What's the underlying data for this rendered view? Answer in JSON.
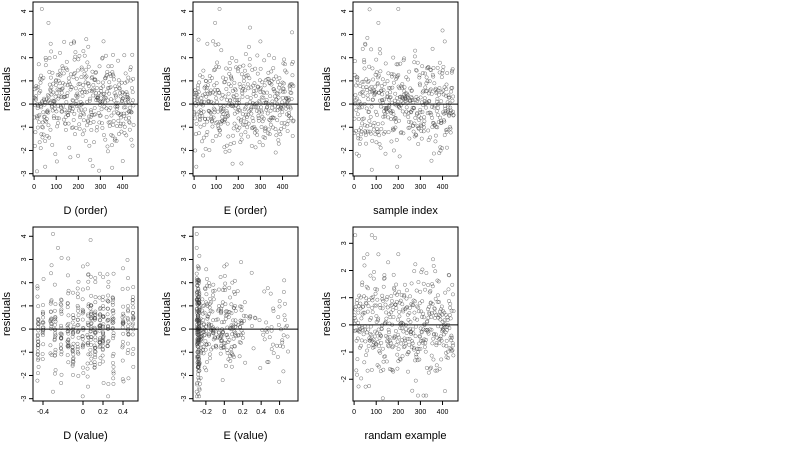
{
  "chart_data": [
    {
      "type": "scatter",
      "xlabel": "D (order)",
      "ylabel": "residuals",
      "xlim": [
        -5,
        470
      ],
      "ylim": [
        -3.1,
        4.4
      ],
      "xticks": [
        0,
        100,
        200,
        300,
        400
      ],
      "yticks": [
        -3,
        -2,
        -1,
        0,
        1,
        2,
        3,
        4
      ],
      "hline": 0,
      "n_points": 450,
      "notable_points": [
        {
          "x": 35,
          "y": 4.1
        },
        {
          "x": 65,
          "y": 3.5
        },
        {
          "x": 50,
          "y": -2.7
        },
        {
          "x": 30,
          "y": -1.9
        },
        {
          "x": 75,
          "y": 2.6
        },
        {
          "x": 180,
          "y": 2.7
        },
        {
          "x": 310,
          "y": 2.0
        }
      ]
    },
    {
      "type": "scatter",
      "xlabel": "E (order)",
      "ylabel": "residuals",
      "xlim": [
        -5,
        470
      ],
      "ylim": [
        -3.1,
        4.4
      ],
      "xticks": [
        0,
        100,
        200,
        300,
        400
      ],
      "yticks": [
        -3,
        -2,
        -1,
        0,
        1,
        2,
        3,
        4
      ],
      "hline": 0,
      "n_points": 450,
      "notable_points": [
        {
          "x": 115,
          "y": 4.1
        },
        {
          "x": 95,
          "y": 3.5
        },
        {
          "x": 10,
          "y": -2.7
        },
        {
          "x": 5,
          "y": -2.0
        },
        {
          "x": 300,
          "y": 2.7
        },
        {
          "x": 60,
          "y": 2.6
        }
      ]
    },
    {
      "type": "scatter",
      "xlabel": "sample index",
      "ylabel": "residuals",
      "xlim": [
        -5,
        470
      ],
      "ylim": [
        -3.1,
        4.4
      ],
      "xticks": [
        0,
        100,
        200,
        300,
        400
      ],
      "yticks": [
        -3,
        -2,
        -1,
        0,
        1,
        2,
        3,
        4
      ],
      "hline": 0,
      "n_points": 450,
      "notable_points": [
        {
          "x": 200,
          "y": 4.1
        },
        {
          "x": 110,
          "y": 3.5
        },
        {
          "x": 195,
          "y": -2.7
        },
        {
          "x": 180,
          "y": -2.0
        },
        {
          "x": 410,
          "y": 2.7
        },
        {
          "x": 50,
          "y": 2.6
        }
      ]
    },
    {
      "type": "scatter",
      "xlabel": "D (value)",
      "ylabel": "residuals",
      "xlim": [
        -0.5,
        0.55
      ],
      "ylim": [
        -3.1,
        4.4
      ],
      "xticks": [
        -0.4,
        0.0,
        0.2,
        0.4
      ],
      "yticks": [
        -3,
        -2,
        -1,
        0,
        1,
        2,
        3,
        4
      ],
      "hline": 0,
      "n_points": 450,
      "notable_points": [
        {
          "x": -0.3,
          "y": 4.1
        },
        {
          "x": -0.25,
          "y": 3.5
        },
        {
          "x": -0.3,
          "y": -2.7
        },
        {
          "x": -0.45,
          "y": -1.9
        },
        {
          "x": 0.0,
          "y": 2.7
        }
      ]
    },
    {
      "type": "scatter",
      "xlabel": "E (value)",
      "ylabel": "residuals",
      "xlim": [
        -0.34,
        0.8
      ],
      "ylim": [
        -3.1,
        4.4
      ],
      "xticks": [
        -0.2,
        0.0,
        0.2,
        0.4,
        0.6
      ],
      "yticks": [
        -3,
        -2,
        -1,
        0,
        1,
        2,
        3,
        4
      ],
      "hline": 0,
      "n_points": 450,
      "notable_points": [
        {
          "x": -0.3,
          "y": 4.1
        },
        {
          "x": -0.3,
          "y": 3.5
        },
        {
          "x": -0.3,
          "y": -2.7
        },
        {
          "x": 0.0,
          "y": 2.7
        },
        {
          "x": 0.65,
          "y": 2.1
        }
      ]
    },
    {
      "type": "scatter",
      "xlabel": "randam example",
      "ylabel": "residuals",
      "xlim": [
        -5,
        470
      ],
      "ylim": [
        -2.8,
        3.6
      ],
      "xticks": [
        0,
        100,
        200,
        300,
        400
      ],
      "yticks": [
        -2,
        -1,
        0,
        1,
        2,
        3
      ],
      "hline": 0,
      "n_points": 450,
      "notable_points": [
        {
          "x": 80,
          "y": 3.3
        },
        {
          "x": 95,
          "y": 3.2
        },
        {
          "x": 200,
          "y": 2.6
        },
        {
          "x": 130,
          "y": -2.7
        }
      ]
    }
  ]
}
